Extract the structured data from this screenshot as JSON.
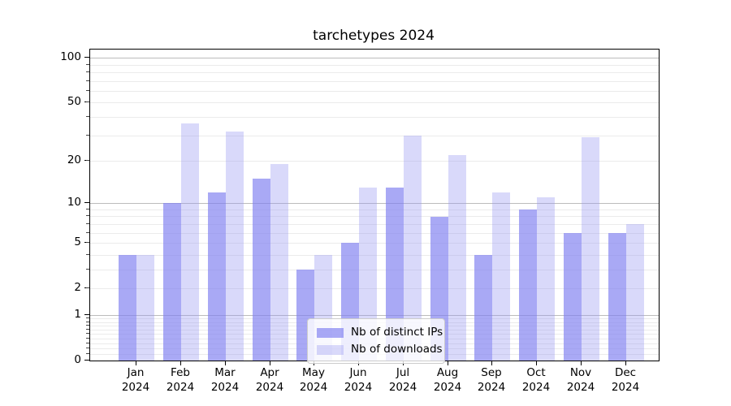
{
  "chart_data": {
    "type": "bar",
    "title": "tarchetypes 2024",
    "categories": [
      "Jan 2024",
      "Feb 2024",
      "Mar 2024",
      "Apr 2024",
      "May 2024",
      "Jun 2024",
      "Jul 2024",
      "Aug 2024",
      "Sep 2024",
      "Oct 2024",
      "Nov 2024",
      "Dec 2024"
    ],
    "x_tick_months": [
      "Jan",
      "Feb",
      "Mar",
      "Apr",
      "May",
      "Jun",
      "Jul",
      "Aug",
      "Sep",
      "Oct",
      "Nov",
      "Dec"
    ],
    "x_tick_year": "2024",
    "series": [
      {
        "name": "Nb of distinct IPs",
        "color": "#8080f0",
        "alpha": 0.68,
        "values": [
          4,
          10,
          12,
          15,
          3,
          5,
          13,
          8,
          4,
          9,
          6,
          6
        ]
      },
      {
        "name": "Nb of downloads",
        "color": "#9696f0",
        "alpha": 0.36,
        "values": [
          4,
          36,
          32,
          19,
          4,
          13,
          30,
          22,
          12,
          11,
          29,
          7
        ]
      }
    ],
    "y_scale": "log1p",
    "y_ticks": [
      0,
      1,
      2,
      5,
      10,
      20,
      50,
      100
    ],
    "y_major_ticks": [
      1,
      10,
      100
    ],
    "ylim": [
      0,
      113
    ],
    "grid": true,
    "legend_position": "lower center"
  }
}
